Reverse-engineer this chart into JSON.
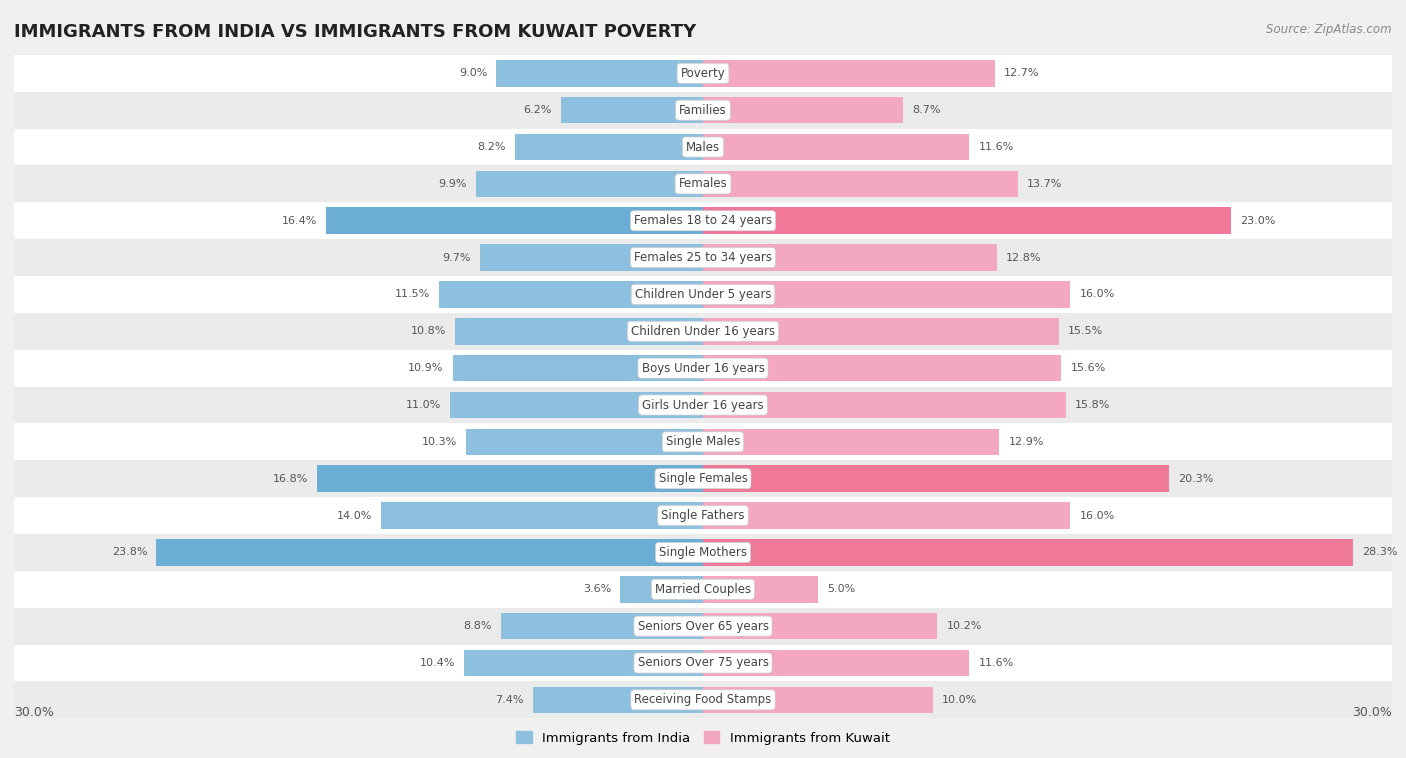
{
  "title": "IMMIGRANTS FROM INDIA VS IMMIGRANTS FROM KUWAIT POVERTY",
  "source": "Source: ZipAtlas.com",
  "categories": [
    "Poverty",
    "Families",
    "Males",
    "Females",
    "Females 18 to 24 years",
    "Females 25 to 34 years",
    "Children Under 5 years",
    "Children Under 16 years",
    "Boys Under 16 years",
    "Girls Under 16 years",
    "Single Males",
    "Single Females",
    "Single Fathers",
    "Single Mothers",
    "Married Couples",
    "Seniors Over 65 years",
    "Seniors Over 75 years",
    "Receiving Food Stamps"
  ],
  "india_values": [
    9.0,
    6.2,
    8.2,
    9.9,
    16.4,
    9.7,
    11.5,
    10.8,
    10.9,
    11.0,
    10.3,
    16.8,
    14.0,
    23.8,
    3.6,
    8.8,
    10.4,
    7.4
  ],
  "kuwait_values": [
    12.7,
    8.7,
    11.6,
    13.7,
    23.0,
    12.8,
    16.0,
    15.5,
    15.6,
    15.8,
    12.9,
    20.3,
    16.0,
    28.3,
    5.0,
    10.2,
    11.6,
    10.0
  ],
  "india_color": "#8dbfde",
  "kuwait_color": "#f4a8bf",
  "india_highlight_color": "#6aadd5",
  "kuwait_highlight_color": "#f07898",
  "row_color_even": "#ffffff",
  "row_color_odd": "#ebebeb",
  "background_color": "#f0f0f0",
  "xlim": 30.0,
  "legend_india": "Immigrants from India",
  "legend_kuwait": "Immigrants from Kuwait",
  "highlight_rows": [
    4,
    11,
    13
  ]
}
